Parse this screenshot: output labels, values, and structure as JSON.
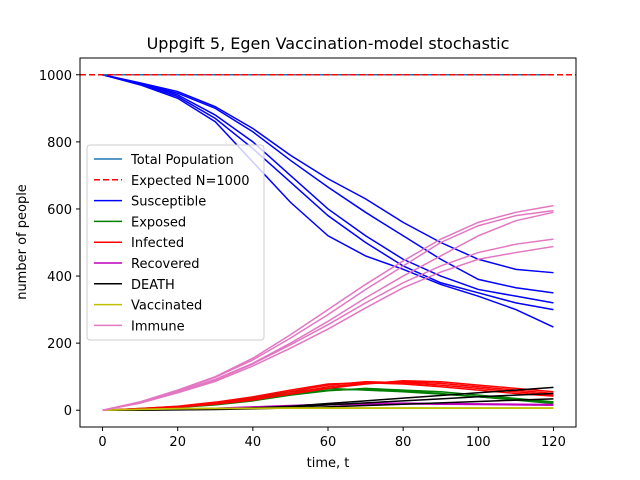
{
  "chart_data": {
    "type": "line",
    "title": "Uppgift 5, Egen Vaccination-model stochastic",
    "xlabel": "time, t",
    "ylabel": "number of people",
    "xlim": [
      -6,
      126
    ],
    "ylim": [
      -50,
      1050
    ],
    "x_ticks": [
      0,
      20,
      40,
      60,
      80,
      100,
      120
    ],
    "y_ticks": [
      0,
      200,
      400,
      600,
      800,
      1000
    ],
    "grid": false,
    "legend_position": "center-left",
    "colors": {
      "total": "#1f77b4",
      "expected": "#ff0000",
      "susceptible": "#0000ff",
      "exposed": "#008000",
      "infected": "#ff0000",
      "recovered": "#bf00bf",
      "death": "#000000",
      "vaccinated": "#bfbf00",
      "immune": "#e377c2"
    },
    "legend": [
      {
        "label": "Total Population",
        "key": "total",
        "dashed": false
      },
      {
        "label": "Expected N=1000",
        "key": "expected",
        "dashed": true
      },
      {
        "label": "Susceptible",
        "key": "susceptible",
        "dashed": false
      },
      {
        "label": "Exposed",
        "key": "exposed",
        "dashed": false
      },
      {
        "label": "Infected",
        "key": "infected",
        "dashed": false
      },
      {
        "label": "Recovered",
        "key": "recovered",
        "dashed": false
      },
      {
        "label": "DEATH",
        "key": "death",
        "dashed": false
      },
      {
        "label": "Vaccinated",
        "key": "vaccinated",
        "dashed": false
      },
      {
        "label": "Immune",
        "key": "immune",
        "dashed": false
      }
    ],
    "x": [
      0,
      10,
      20,
      30,
      40,
      50,
      60,
      70,
      80,
      90,
      100,
      110,
      120
    ],
    "series": [
      {
        "name": "Total Population",
        "key": "total",
        "runs": [
          [
            1000,
            1000,
            1000,
            1000,
            1000,
            1000,
            1000,
            1000,
            1000,
            1000,
            1000,
            1000,
            1000
          ]
        ]
      },
      {
        "name": "Expected N=1000",
        "key": "expected",
        "dashed": true,
        "runs": [
          [
            1000,
            1000,
            1000,
            1000,
            1000,
            1000,
            1000,
            1000,
            1000,
            1000,
            1000,
            1000,
            1000
          ]
        ]
      },
      {
        "name": "Susceptible",
        "key": "susceptible",
        "runs": [
          [
            1000,
            975,
            940,
            880,
            800,
            700,
            600,
            520,
            450,
            400,
            360,
            340,
            320
          ],
          [
            1000,
            972,
            935,
            870,
            780,
            680,
            580,
            500,
            430,
            380,
            350,
            320,
            300
          ],
          [
            1000,
            974,
            945,
            900,
            830,
            745,
            665,
            590,
            520,
            450,
            390,
            365,
            350
          ],
          [
            1000,
            976,
            950,
            905,
            840,
            760,
            690,
            630,
            560,
            500,
            450,
            420,
            410
          ],
          [
            1000,
            970,
            930,
            860,
            740,
            620,
            520,
            460,
            420,
            375,
            340,
            300,
            248
          ]
        ]
      },
      {
        "name": "Exposed",
        "key": "exposed",
        "runs": [
          [
            0,
            4,
            10,
            20,
            35,
            50,
            60,
            62,
            58,
            50,
            40,
            30,
            20
          ],
          [
            0,
            3,
            8,
            16,
            28,
            45,
            58,
            65,
            60,
            55,
            45,
            35,
            25
          ],
          [
            0,
            5,
            11,
            22,
            38,
            55,
            65,
            60,
            55,
            48,
            40,
            32,
            24
          ]
        ]
      },
      {
        "name": "Infected",
        "key": "infected",
        "runs": [
          [
            0,
            4,
            10,
            20,
            35,
            55,
            75,
            85,
            82,
            75,
            65,
            55,
            45
          ],
          [
            0,
            3,
            9,
            18,
            30,
            50,
            70,
            80,
            85,
            80,
            70,
            60,
            50
          ],
          [
            0,
            5,
            12,
            24,
            40,
            60,
            78,
            82,
            78,
            70,
            60,
            50,
            42
          ],
          [
            0,
            4,
            10,
            20,
            32,
            48,
            65,
            78,
            88,
            85,
            75,
            65,
            55
          ]
        ]
      },
      {
        "name": "Recovered",
        "key": "recovered",
        "runs": [
          [
            0,
            1,
            3,
            6,
            10,
            14,
            18,
            20,
            21,
            20,
            19,
            18,
            17
          ],
          [
            0,
            1,
            2,
            5,
            9,
            13,
            16,
            18,
            19,
            18,
            17,
            16,
            15
          ]
        ]
      },
      {
        "name": "DEATH",
        "key": "death",
        "runs": [
          [
            0,
            1,
            2,
            4,
            7,
            12,
            20,
            28,
            36,
            44,
            52,
            60,
            68
          ],
          [
            0,
            1,
            2,
            3,
            6,
            10,
            16,
            22,
            28,
            34,
            40,
            45,
            50
          ],
          [
            0,
            0,
            1,
            2,
            4,
            7,
            10,
            14,
            18,
            22,
            26,
            30,
            34
          ]
        ]
      },
      {
        "name": "Vaccinated",
        "key": "vaccinated",
        "runs": [
          [
            0,
            3,
            5,
            6,
            6,
            7,
            7,
            7,
            7,
            7,
            7,
            7,
            7
          ],
          [
            0,
            2,
            4,
            5,
            5,
            6,
            6,
            6,
            6,
            6,
            6,
            6,
            6
          ]
        ]
      },
      {
        "name": "Immune",
        "key": "immune",
        "runs": [
          [
            0,
            25,
            60,
            100,
            155,
            225,
            300,
            375,
            445,
            510,
            560,
            590,
            610
          ],
          [
            0,
            24,
            58,
            98,
            150,
            215,
            285,
            360,
            430,
            500,
            550,
            580,
            595
          ],
          [
            0,
            23,
            55,
            92,
            140,
            200,
            265,
            335,
            400,
            460,
            520,
            565,
            590
          ],
          [
            0,
            22,
            55,
            90,
            138,
            195,
            255,
            320,
            380,
            430,
            470,
            495,
            510
          ],
          [
            0,
            21,
            52,
            86,
            132,
            185,
            242,
            305,
            365,
            412,
            450,
            470,
            488
          ]
        ]
      }
    ]
  }
}
